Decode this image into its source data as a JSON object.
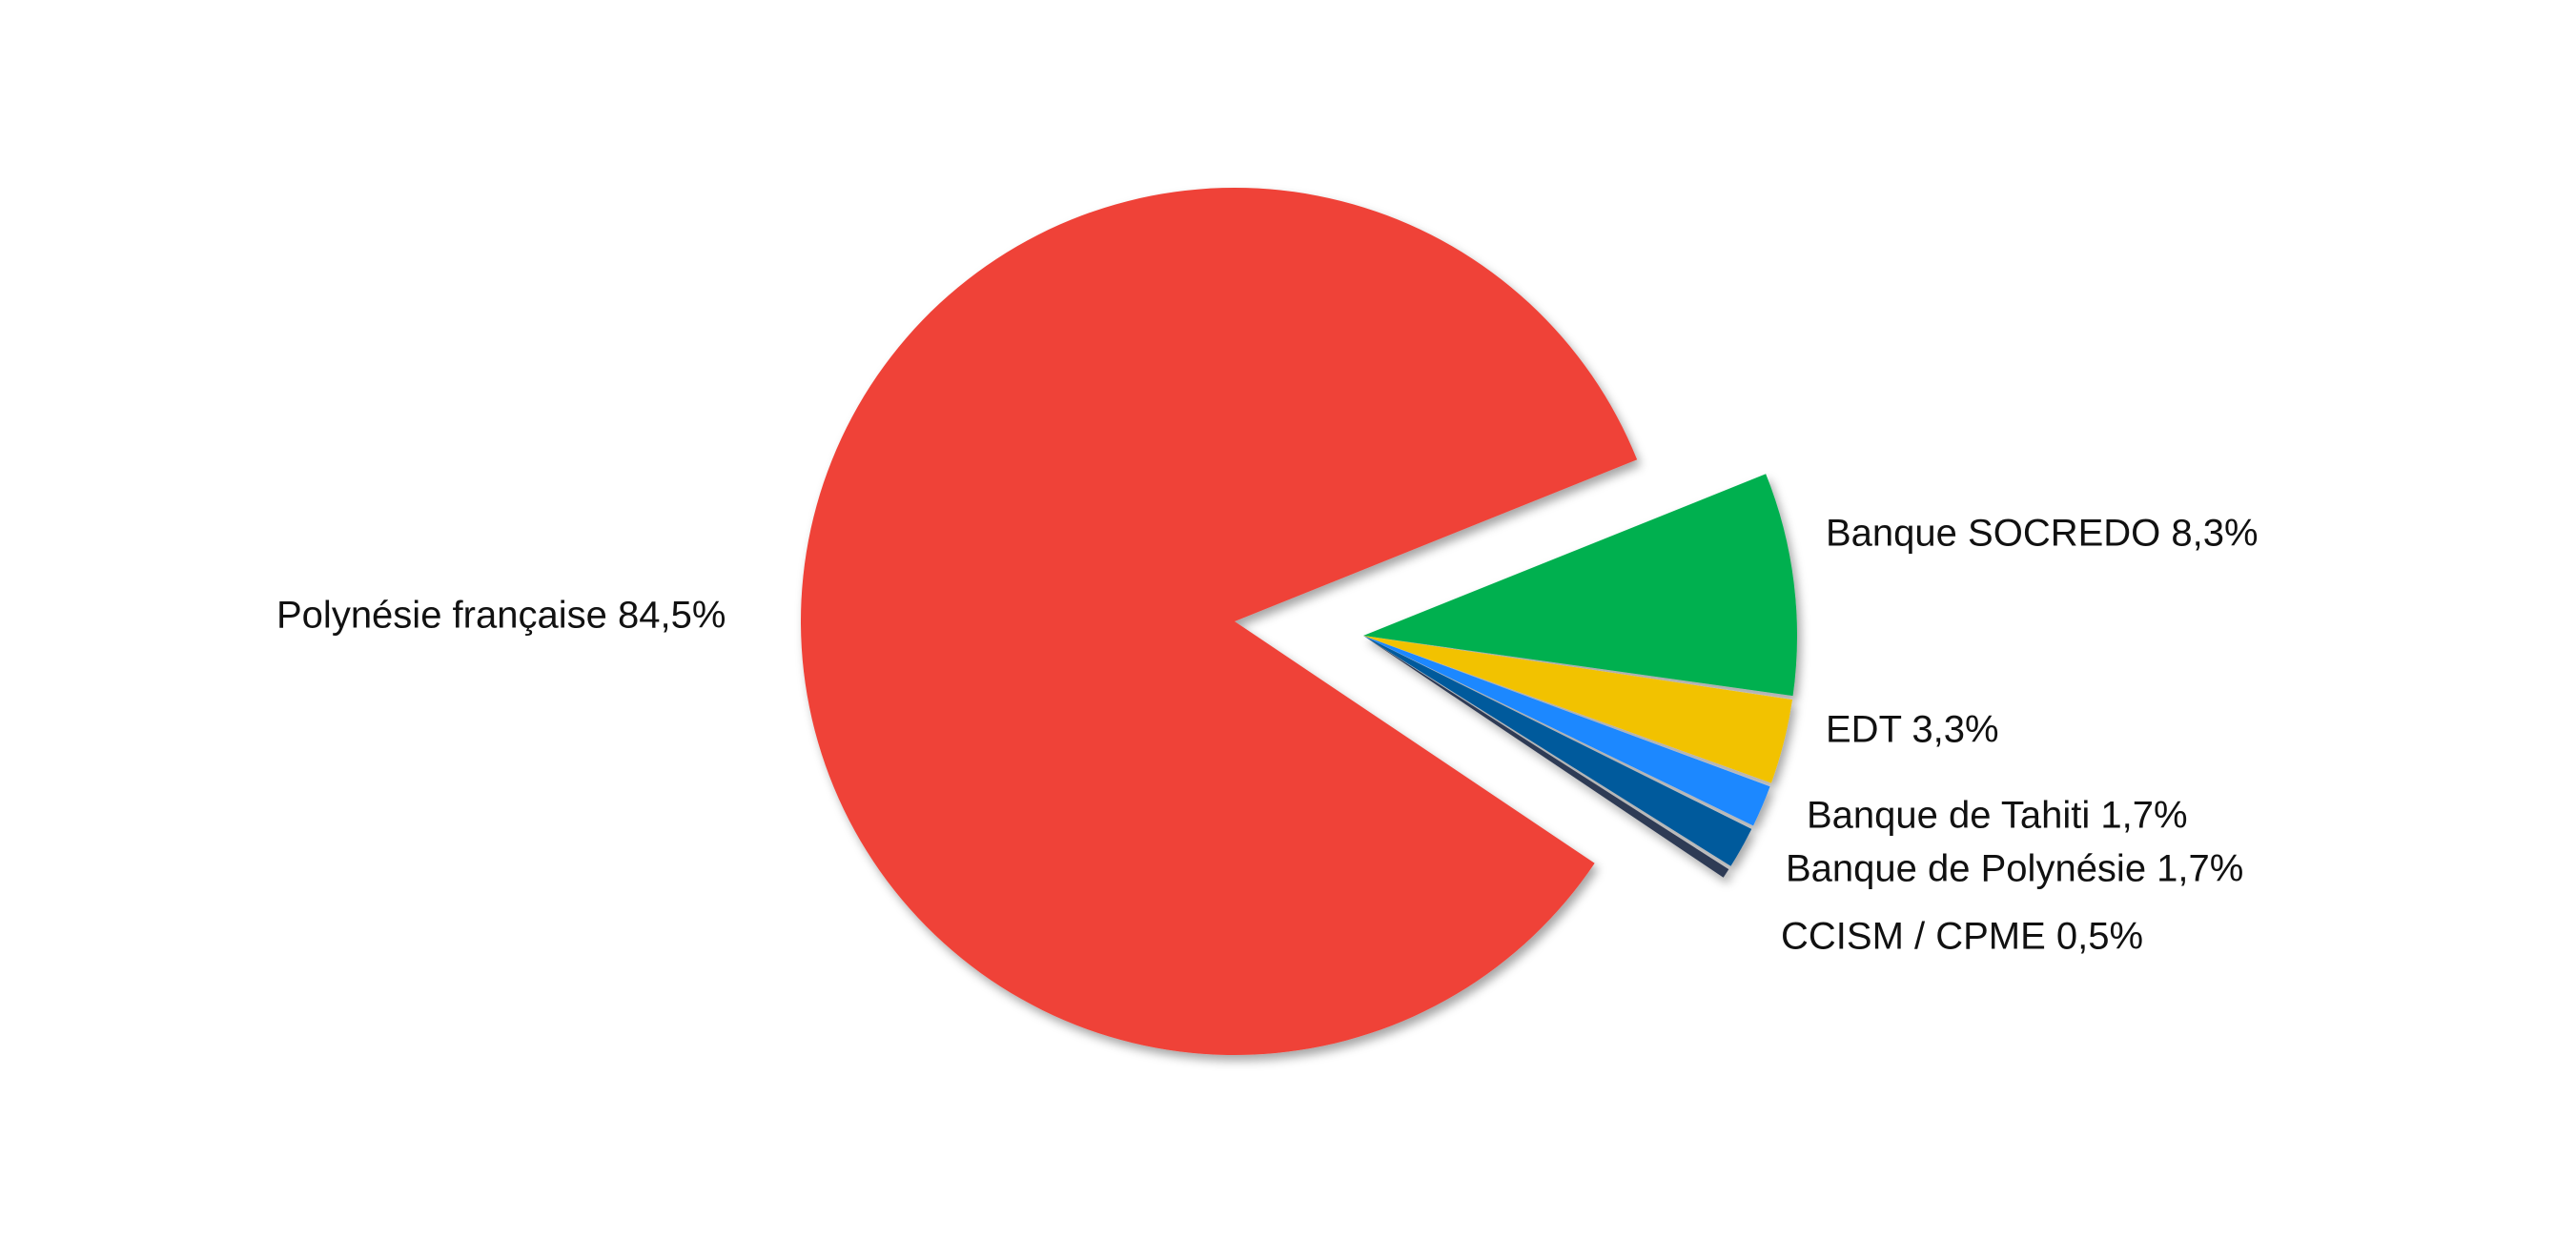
{
  "chart_data": {
    "type": "pie",
    "title": "",
    "legend": "none",
    "slices": [
      {
        "label": "Polynésie française 84,5%",
        "value": 84.5,
        "color": "#EF4238"
      },
      {
        "label": "Banque SOCREDO 8,3%",
        "value": 8.3,
        "color": "#00B050"
      },
      {
        "label": "EDT 3,3%",
        "value": 3.3,
        "color": "#F2C200"
      },
      {
        "label": "Banque de Tahiti 1,7%",
        "value": 1.7,
        "color": "#1E88FF"
      },
      {
        "label": "Banque de Polynésie 1,7%",
        "value": 1.7,
        "color": "#005A9C"
      },
      {
        "label": "CCISM / CPME 0,5%",
        "value": 0.5,
        "color": "#2E3A55"
      }
    ]
  }
}
